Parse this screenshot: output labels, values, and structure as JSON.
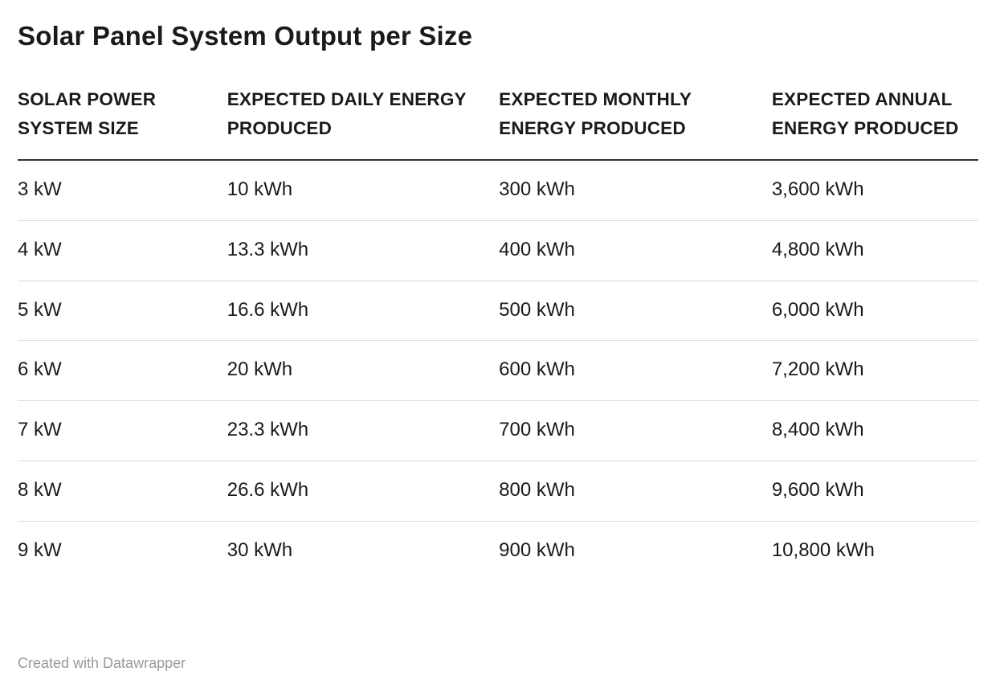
{
  "title": "Solar Panel System Output per Size",
  "footer": {
    "credit": "Created with Datawrapper"
  },
  "chart_data": {
    "type": "table",
    "title": "Solar Panel System Output per Size",
    "columns": [
      "SOLAR POWER SYSTEM SIZE",
      "EXPECTED DAILY ENERGY PRODUCED",
      "EXPECTED MONTHLY ENERGY PRODUCED",
      "EXPECTED ANNUAL ENERGY PRODUCED"
    ],
    "rows": [
      [
        "3 kW",
        "10 kWh",
        "300 kWh",
        "3,600 kWh"
      ],
      [
        "4 kW",
        "13.3 kWh",
        "400 kWh",
        "4,800 kWh"
      ],
      [
        "5 kW",
        "16.6 kWh",
        "500 kWh",
        "6,000 kWh"
      ],
      [
        "6 kW",
        "20 kWh",
        "600 kWh",
        "7,200 kWh"
      ],
      [
        "7 kW",
        "23.3 kWh",
        "700 kWh",
        "8,400 kWh"
      ],
      [
        "8 kW",
        "26.6 kWh",
        "800 kWh",
        "9,600 kWh"
      ],
      [
        "9 kW",
        "30 kWh",
        "900 kWh",
        "10,800 kWh"
      ]
    ],
    "legend": "none",
    "grid": "horizontal-row-dividers",
    "colors": {
      "text": "#1a1a1a",
      "header_border": "#333333",
      "row_border": "#dddddd",
      "footer_text": "#999999",
      "background": "#ffffff"
    }
  }
}
